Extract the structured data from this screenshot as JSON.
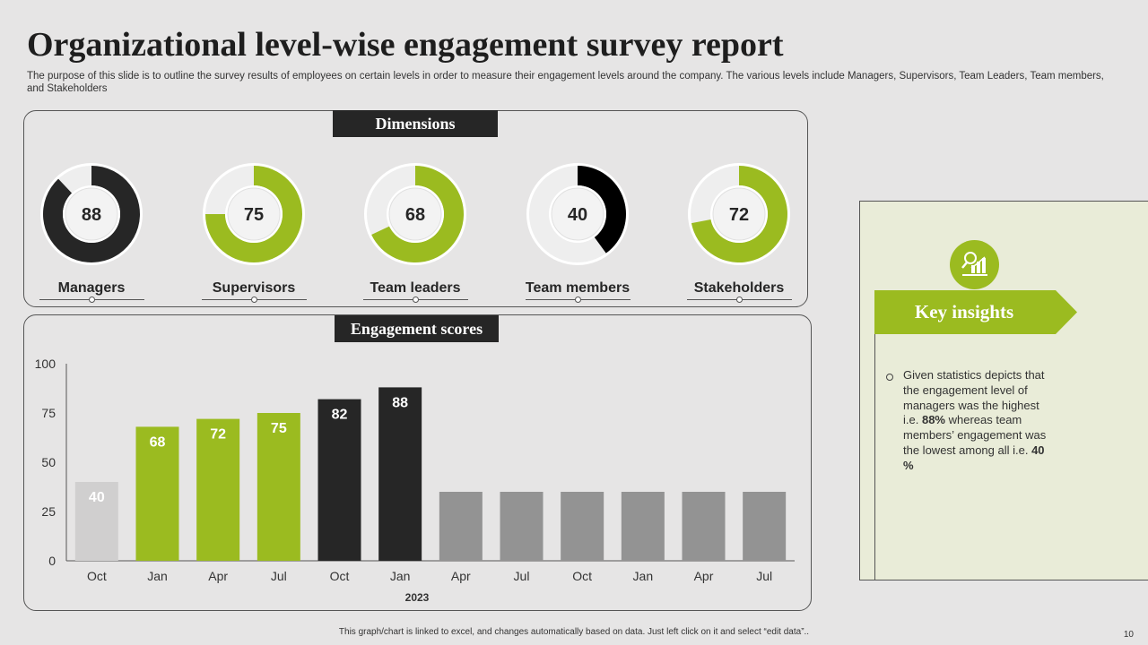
{
  "title": "Organizational level-wise engagement survey report",
  "subtitle": "The purpose of this slide is to outline the survey results of employees on certain levels in order to measure their engagement levels around the company.  The various levels include Managers, Supervisors, Team Leaders, Team members, and Stakeholders",
  "dimensions": {
    "heading": "Dimensions",
    "items": [
      {
        "label": "Managers",
        "value": 88,
        "color": "#262626"
      },
      {
        "label": "Supervisors",
        "value": 75,
        "color": "#9bbb20"
      },
      {
        "label": "Team leaders",
        "value": 68,
        "color": "#9bbb20"
      },
      {
        "label": "Team members",
        "value": 40,
        "color": "#000000"
      },
      {
        "label": "Stakeholders",
        "value": 72,
        "color": "#9bbb20"
      }
    ]
  },
  "engagement": {
    "heading": "Engagement scores"
  },
  "chart_data": {
    "type": "bar",
    "categories": [
      "Oct",
      "Jan",
      "Apr",
      "Jul",
      "Oct",
      "Jan",
      "Apr",
      "Jul",
      "Oct",
      "Jan",
      "Apr",
      "Jul"
    ],
    "values": [
      40,
      68,
      72,
      75,
      82,
      88,
      35,
      35,
      35,
      35,
      35,
      35
    ],
    "data_labels": [
      "40",
      "68",
      "72",
      "75",
      "82",
      "88",
      "",
      "",
      "",
      "",
      "",
      ""
    ],
    "bar_colors": [
      "#d0cfcf",
      "#9bbb20",
      "#9bbb20",
      "#9bbb20",
      "#262626",
      "#262626",
      "#939393",
      "#939393",
      "#939393",
      "#939393",
      "#939393",
      "#939393"
    ],
    "xlabel": "2023",
    "ylabel": "",
    "ylim": [
      0,
      100
    ],
    "yticks": [
      0,
      25,
      50,
      75,
      100
    ],
    "grid": false
  },
  "insights": {
    "heading": "Key insights",
    "icon": "growth-chart-search-icon",
    "text_parts": [
      {
        "t": "Given statistics depicts that the engagement level of managers was the highest i.e. ",
        "b": false
      },
      {
        "t": "88%",
        "b": true
      },
      {
        "t": " whereas team members’ engagement was the lowest among all i.e. ",
        "b": false
      },
      {
        "t": "40 %",
        "b": true
      }
    ]
  },
  "footer": "This graph/chart is linked to excel, and changes automatically based on data. Just left click on it and select “edit data”..",
  "page_number": "10"
}
